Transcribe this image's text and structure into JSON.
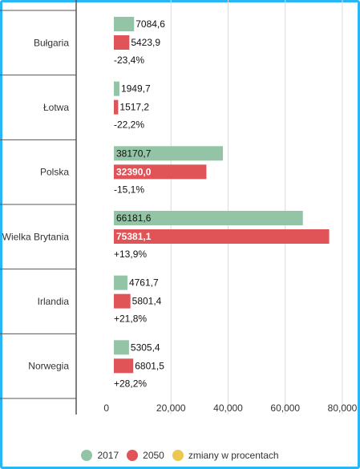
{
  "chart_data": {
    "type": "bar",
    "orientation": "horizontal",
    "categories": [
      "Bułgaria",
      "Łotwa",
      "Polska",
      "Wielka Brytania",
      "Irlandia",
      "Norwegia"
    ],
    "series": [
      {
        "name": "2017",
        "color": "#93c4a5",
        "values": [
          7084.6,
          1949.7,
          38170.7,
          66181.6,
          4761.7,
          5305.4
        ],
        "labels": [
          "7084,6",
          "1949,7",
          "38170,7",
          "66181,6",
          "4761,7",
          "5305,4"
        ]
      },
      {
        "name": "2050",
        "color": "#e05457",
        "values": [
          5423.9,
          1517.2,
          32390.0,
          75381.1,
          5801.4,
          6801.5
        ],
        "labels": [
          "5423,9",
          "1517,2",
          "32390,0",
          "75381,1",
          "5801,4",
          "6801,5"
        ]
      },
      {
        "name": "zmiany w procentach",
        "color": "#ecc852",
        "labels": [
          "-23,4%",
          "-22,2%",
          "-15,1%",
          "+13,9%",
          "+21,8%",
          "+28,2%"
        ]
      }
    ],
    "xlim": [
      0,
      80000
    ],
    "xticks": [
      0,
      20000,
      40000,
      60000,
      80000
    ],
    "xtick_labels": [
      "0",
      "20,000",
      "40,000",
      "60,000",
      "80,000"
    ],
    "grid": true,
    "legend_position": "bottom"
  }
}
